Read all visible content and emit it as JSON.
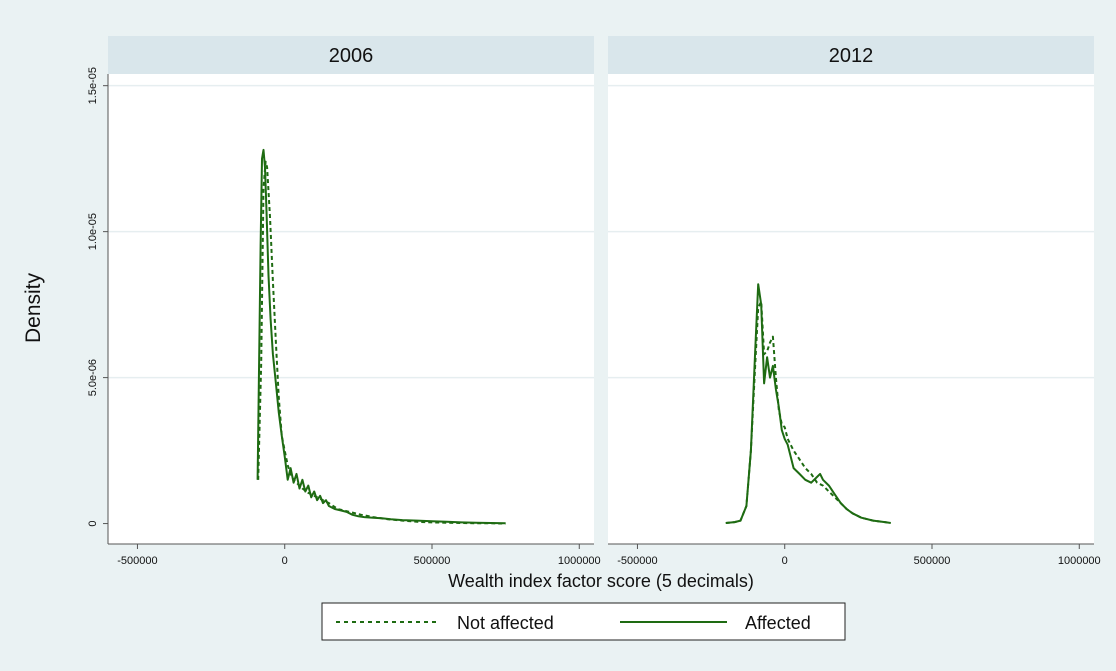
{
  "chart_data": {
    "type": "line",
    "ylabel": "Density",
    "xlabel": "Wealth index factor score (5 decimals)",
    "xlim": [
      -600000,
      1050000
    ],
    "ylim": [
      -7e-07,
      1.54e-05
    ],
    "x_ticks": [
      {
        "value": -500000,
        "label": "-500000"
      },
      {
        "value": 0,
        "label": "0"
      },
      {
        "value": 500000,
        "label": "500000"
      },
      {
        "value": 1000000,
        "label": "1000000"
      }
    ],
    "y_ticks": [
      {
        "value": 0,
        "label": "0"
      },
      {
        "value": 5e-06,
        "label": "5.0e-06"
      },
      {
        "value": 1e-05,
        "label": "1.0e-05"
      },
      {
        "value": 1.5e-05,
        "label": "1.5e-05"
      }
    ],
    "grid": true,
    "line_color": "#1e6b12",
    "legend_position": "bottom",
    "legend": [
      {
        "label": "Not affected",
        "style": "dashed"
      },
      {
        "label": "Affected",
        "style": "solid"
      }
    ],
    "panels": [
      {
        "title": "2006",
        "series": [
          {
            "name": "Not affected",
            "style": "dashed",
            "x": [
              -90000,
              -80000,
              -72000,
              -65000,
              -60000,
              -50000,
              -40000,
              -30000,
              -20000,
              -10000,
              0,
              10000,
              20000,
              30000,
              40000,
              50000,
              60000,
              80000,
              100000,
              120000,
              150000,
              180000,
              220000,
              260000,
              300000,
              350000,
              400000,
              450000,
              500000,
              550000,
              600000,
              650000,
              700000,
              750000
            ],
            "y": [
              1.5e-06,
              5.5e-06,
              1.15e-05,
              1.24e-05,
              1.22e-05,
              1.05e-05,
              8.3e-06,
              6.2e-06,
              4.3e-06,
              3e-06,
              2.5e-06,
              2e-06,
              1.7e-06,
              1.5e-06,
              1.4e-06,
              1.3e-06,
              1.2e-06,
              1.05e-06,
              9.5e-07,
              8.5e-07,
              7e-07,
              5e-07,
              4e-07,
              3e-07,
              2.2e-07,
              1.5e-07,
              1e-07,
              6e-08,
              4e-08,
              3e-08,
              2e-08,
              1e-08,
              1e-08,
              0
            ]
          },
          {
            "name": "Affected",
            "style": "solid",
            "x": [
              -92000,
              -87000,
              -82000,
              -77000,
              -72000,
              -67000,
              -62000,
              -55000,
              -48000,
              -40000,
              -30000,
              -20000,
              -10000,
              0,
              10000,
              20000,
              30000,
              40000,
              50000,
              60000,
              70000,
              80000,
              90000,
              100000,
              110000,
              120000,
              130000,
              140000,
              150000,
              170000,
              190000,
              210000,
              230000,
              250000,
              270000,
              300000,
              330000,
              360000,
              400000,
              450000,
              500000,
              550000,
              600000,
              650000,
              700000,
              750000
            ],
            "y": [
              1.5e-06,
              5.5e-06,
              9.5e-06,
              1.25e-05,
              1.28e-05,
              1.22e-05,
              1.07e-05,
              8.5e-06,
              7e-06,
              5.8e-06,
              4.8e-06,
              3.8e-06,
              3e-06,
              2.3e-06,
              1.5e-06,
              1.9e-06,
              1.4e-06,
              1.7e-06,
              1.2e-06,
              1.5e-06,
              1.1e-06,
              1.3e-06,
              9e-07,
              1.1e-06,
              8e-07,
              9.5e-07,
              7e-07,
              8e-07,
              6e-07,
              5e-07,
              4.5e-07,
              4e-07,
              3e-07,
              2.5e-07,
              2.2e-07,
              2e-07,
              1.8e-07,
              1.5e-07,
              1.2e-07,
              1e-07,
              8e-08,
              6e-08,
              4e-08,
              3e-08,
              2e-08,
              1e-08
            ]
          }
        ]
      },
      {
        "title": "2012",
        "series": [
          {
            "name": "Not affected",
            "style": "dashed",
            "x": [
              -200000,
              -170000,
              -150000,
              -130000,
              -115000,
              -100000,
              -90000,
              -80000,
              -70000,
              -60000,
              -50000,
              -40000,
              -30000,
              -20000,
              -10000,
              0,
              10000,
              30000,
              50000,
              70000,
              90000,
              110000,
              130000,
              150000,
              170000,
              190000,
              210000,
              230000,
              260000,
              300000,
              340000,
              360000
            ],
            "y": [
              2e-08,
              5e-08,
              1e-07,
              6e-07,
              2.5e-06,
              5.5e-06,
              7.4e-06,
              7.6e-06,
              5.8e-06,
              5.9e-06,
              6.2e-06,
              6.4e-06,
              5e-06,
              3.9e-06,
              3.4e-06,
              3.3e-06,
              2.9e-06,
              2.5e-06,
              2.2e-06,
              1.9e-06,
              1.7e-06,
              1.4e-06,
              1.3e-06,
              1.1e-06,
              9e-07,
              7e-07,
              5e-07,
              3.5e-07,
              2e-07,
              1e-07,
              5e-08,
              2e-08
            ]
          },
          {
            "name": "Affected",
            "style": "solid",
            "x": [
              -200000,
              -170000,
              -150000,
              -130000,
              -115000,
              -100000,
              -90000,
              -80000,
              -70000,
              -60000,
              -50000,
              -40000,
              -30000,
              -20000,
              -10000,
              0,
              10000,
              30000,
              50000,
              70000,
              90000,
              110000,
              120000,
              130000,
              150000,
              170000,
              190000,
              210000,
              230000,
              260000,
              300000,
              340000,
              360000
            ],
            "y": [
              2e-08,
              5e-08,
              1e-07,
              6e-07,
              2.5e-06,
              6e-06,
              8.2e-06,
              7.5e-06,
              4.8e-06,
              5.7e-06,
              5e-06,
              5.4e-06,
              4.6e-06,
              4e-06,
              3.2e-06,
              2.9e-06,
              2.7e-06,
              1.9e-06,
              1.7e-06,
              1.5e-06,
              1.4e-06,
              1.6e-06,
              1.7e-06,
              1.5e-06,
              1.3e-06,
              1e-06,
              7e-07,
              5e-07,
              3.5e-07,
              2e-07,
              1e-07,
              5e-08,
              2e-08
            ]
          }
        ]
      }
    ]
  }
}
